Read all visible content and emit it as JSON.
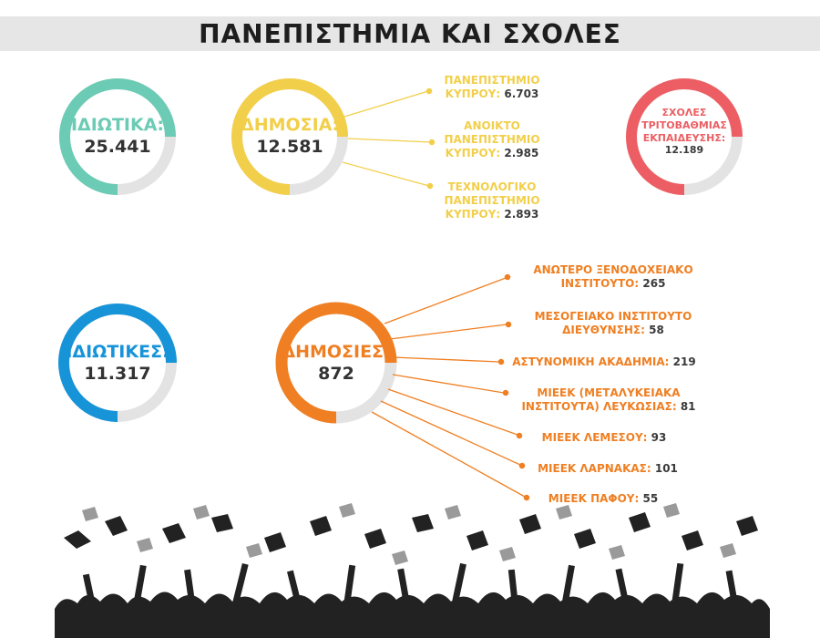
{
  "title": "ΠΑΝΕΠΙΣΤΗΜΙΑ ΚΑΙ ΣΧΟΛΕΣ",
  "colors": {
    "teal": "#6ccbb4",
    "yellow": "#f2cf4a",
    "red": "#ec5e63",
    "blue": "#1794d8",
    "orange": "#ef7f22",
    "ring_track": "#e3e3e3",
    "silhouette": "#222222"
  },
  "universities": {
    "private": {
      "label": "ΙΔΙΩΤΙΚΑ:",
      "value": "25.441"
    },
    "public": {
      "label": "ΔΗΜΟΣΙΑ:",
      "value": "12.581",
      "breakdown": [
        {
          "line1": "ΠΑΝΕΠΙΣΤΗΜΙΟ",
          "line2": "ΚΥΠΡΟΥ:",
          "value": "6.703"
        },
        {
          "line0": "ΑΝΟΙΚΤΟ",
          "line1": "ΠΑΝΕΠΙΣΤΗΜΙΟ",
          "line2": "ΚΥΠΡΟΥ:",
          "value": "2.985"
        },
        {
          "line0": "ΤΕΧΝΟΛΟΓΙΚΟ",
          "line1": "ΠΑΝΕΠΙΣΤΗΜΙΟ",
          "line2": "ΚΥΠΡΟΥ:",
          "value": "2.893"
        }
      ]
    },
    "tertiary": {
      "line1": "ΣΧΟΛΕΣ",
      "line2": "ΤΡΙΤΟΒΑΘΜΙΑΣ",
      "line3": "ΕΚΠΑΙΔΕΥΣΗΣ:",
      "value": "12.189"
    }
  },
  "schools": {
    "private": {
      "label": "ΙΔΙΩΤΙΚΕΣ:",
      "value": "11.317"
    },
    "public": {
      "label": "ΔΗΜΟΣΙΕΣ:",
      "value": "872",
      "breakdown": [
        {
          "line1": "ΑΝΩΤΕΡΟ ΞΕΝΟΔΟΧΕΙΑΚΟ",
          "line2": "ΙΝΣΤΙΤΟΥΤΟ:",
          "value": "265"
        },
        {
          "line1": "ΜΕΣΟΓΕΙΑΚΟ ΙΝΣΤΙΤΟΥΤΟ",
          "line2": "ΔΙΕΥΘΥΝΣΗΣ:",
          "value": "58"
        },
        {
          "line2": "ΑΣΤΥΝΟΜΙΚΗ ΑΚΑΔΗΜΙΑ:",
          "value": "219"
        },
        {
          "line1": "ΜΙΕΕΚ (ΜΕΤΑΛΥΚΕΙΑΚΑ",
          "line2": "ΙΝΣΤΙΤΟΥΤΑ) ΛΕΥΚΩΣΙΑΣ:",
          "value": "81"
        },
        {
          "line2": "ΜΙΕΕΚ ΛΕΜΕΣΟΥ:",
          "value": "93"
        },
        {
          "line2": "ΜΙΕΕΚ ΛΑΡΝΑΚΑΣ:",
          "value": "101"
        },
        {
          "line2": "ΜΙΕΕΚ ΠΑΦΟΥ:",
          "value": "55"
        }
      ]
    }
  },
  "decoration": "graduation-crowd-silhouette"
}
